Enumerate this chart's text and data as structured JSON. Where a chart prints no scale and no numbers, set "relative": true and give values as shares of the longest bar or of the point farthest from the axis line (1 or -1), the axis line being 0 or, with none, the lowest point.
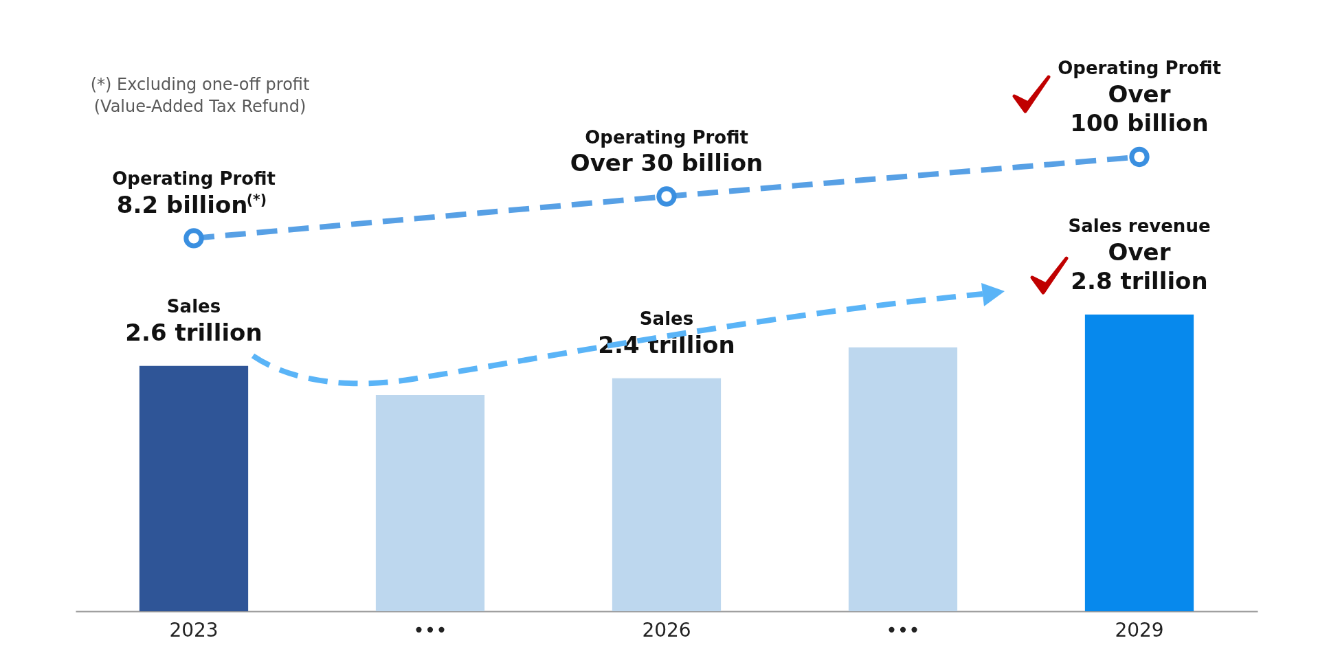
{
  "chart_data": {
    "type": "bar",
    "relative": true,
    "categories": [
      "2023",
      "•••",
      "2026",
      "•••",
      "2029"
    ],
    "series": [
      {
        "colors": [
          "#2f5597",
          "#bdd7ee",
          "#bdd7ee",
          "#bdd7ee",
          "#0789ed"
        ],
        "values": [
          0.54,
          0.476,
          0.513,
          0.581,
          0.653
        ]
      },
      {
        "type": "line",
        "color": "#3a8fe0",
        "values": [
          0.821,
          null,
          0.913,
          null,
          1
        ]
      }
    ],
    "marker": "circle",
    "line_style": "dashed",
    "annotations": [
      "(*) Excluding one-off profit\n(Value-Added Tax Refund)",
      {
        "text": "Operating Profit\n8.2 billion$^{(*)}$",
        "x": "2023",
        "y": 0.821
      },
      {
        "text": "Operating Profit\nOver 30 billion",
        "x": "2026",
        "y": 0.913
      },
      {
        "text": "Operating Profit\nOver\n100 billion",
        "x": "2029",
        "y": 1
      },
      {
        "text": "Sales\n2.6 trillion",
        "x": "2023",
        "y": 0.54
      },
      {
        "text": "Sales\n2.4 trillion",
        "x": "2026",
        "y": 0.513
      },
      {
        "text": "Sales revenue\nOver\n2.8 trillion",
        "x": "2029",
        "y": 0.653
      }
    ]
  }
}
